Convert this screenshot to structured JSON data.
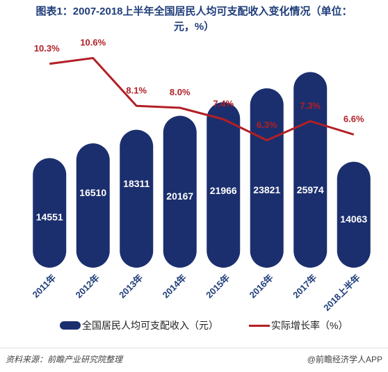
{
  "title": "图表1：2007-2018上半年全国居民人均可支配收入变化情况（单位：\n元，%）",
  "colors": {
    "bar": "#1b2f6e",
    "line": "#b21f24",
    "title": "#1f3d7a",
    "bar_label": "#ffffff",
    "line_label": "#b21f24"
  },
  "chart_data": {
    "type": "bar",
    "categories": [
      "2011年",
      "2012年",
      "2013年",
      "2014年",
      "2015年",
      "2016年",
      "2017年",
      "2018上半年"
    ],
    "series": [
      {
        "name": "全国居民人均可支配收入（元）",
        "type": "bar",
        "axis": "left",
        "values": [
          14551,
          16510,
          18311,
          20167,
          21966,
          23821,
          25974,
          14063
        ],
        "labels": [
          "14551",
          "16510",
          "18311",
          "20167",
          "21966",
          "23821",
          "25974",
          "14063"
        ]
      },
      {
        "name": "实际增长率（%）",
        "type": "line",
        "axis": "right",
        "values": [
          10.3,
          10.6,
          8.1,
          8.0,
          7.4,
          6.3,
          7.3,
          6.6
        ],
        "labels": [
          "10.3%",
          "10.6%",
          "8.1%",
          "8.0%",
          "7.4%",
          "6.3%",
          "7.3%",
          "6.6%"
        ]
      }
    ],
    "ylim_left": [
      0,
      30000
    ],
    "ylim_right": [
      0,
      14
    ],
    "legend_position": "bottom",
    "grid": false
  },
  "footer": {
    "source": "资料来源：前瞻产业研究院整理",
    "brand": "@前瞻经济学人APP"
  }
}
